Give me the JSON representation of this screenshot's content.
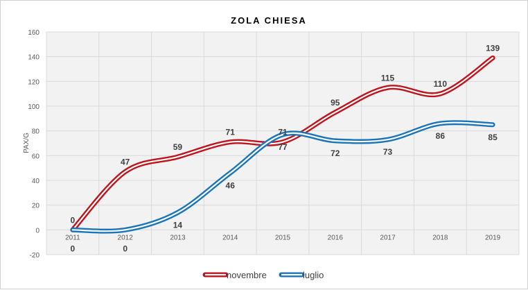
{
  "chart_data": {
    "type": "line",
    "title": "ZOLA CHIESA",
    "xlabel": "",
    "ylabel": "PAX/G",
    "ylim": [
      -20,
      160
    ],
    "yticks": [
      -20,
      0,
      20,
      40,
      60,
      80,
      100,
      120,
      140,
      160
    ],
    "categories": [
      "2011",
      "2012",
      "2013",
      "2014",
      "2015",
      "2016",
      "2017",
      "2018",
      "2019"
    ],
    "grid": true,
    "legend_position": "bottom",
    "series": [
      {
        "name": "novembre",
        "color": "#c0141c",
        "values": [
          0,
          47,
          59,
          71,
          71,
          95,
          115,
          110,
          139
        ],
        "label_side": "above"
      },
      {
        "name": "luglio",
        "color": "#1a75b8",
        "values": [
          0,
          0,
          14,
          46,
          77,
          72,
          73,
          86,
          85
        ],
        "label_side": "below"
      }
    ]
  }
}
